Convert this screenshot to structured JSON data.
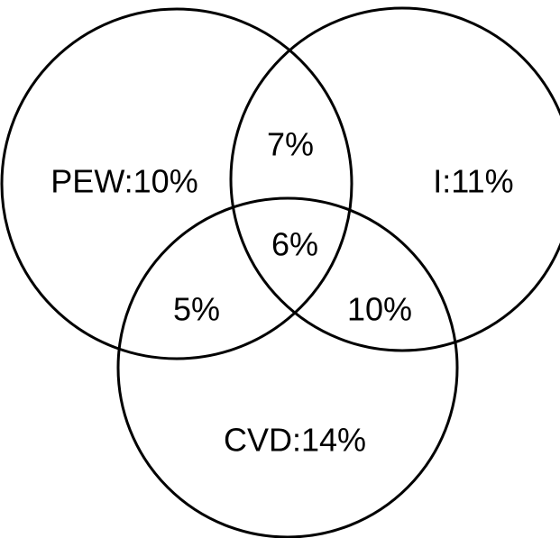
{
  "regions": [
    {
      "label": "PEW:10%"
    },
    {
      "label": "I:11%"
    },
    {
      "label": "CVD:14%"
    },
    {
      "label": "7%"
    },
    {
      "label": "5%"
    },
    {
      "label": "10%"
    },
    {
      "label": "6%"
    }
  ]
}
